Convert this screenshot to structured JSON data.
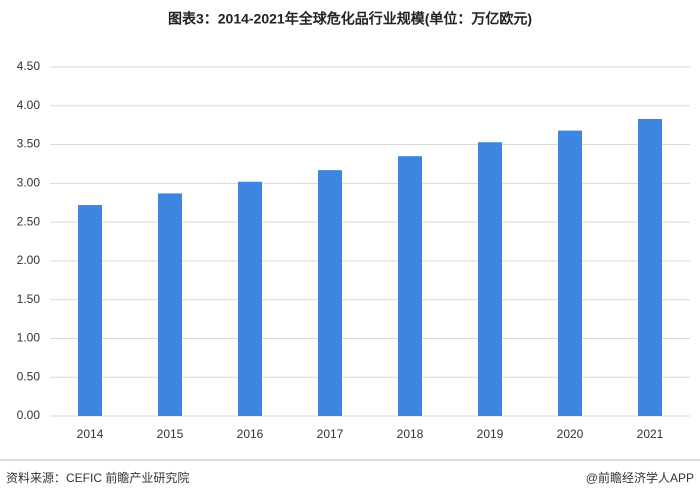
{
  "chart_data": {
    "type": "bar",
    "title": "图表3：2014-2021年全球危化品行业规模(单位：万亿欧元)",
    "categories": [
      "2014",
      "2015",
      "2016",
      "2017",
      "2018",
      "2019",
      "2020",
      "2021"
    ],
    "values": [
      2.72,
      2.87,
      3.02,
      3.17,
      3.35,
      3.53,
      3.68,
      3.83
    ],
    "color": "#3d85e0",
    "ylim": [
      0,
      4.5
    ],
    "yticks": [
      {
        "value": 0,
        "label": "0.00"
      },
      {
        "value": 0.5,
        "label": "0.50"
      },
      {
        "value": 1,
        "label": "1.00"
      },
      {
        "value": 1.5,
        "label": "1.50"
      },
      {
        "value": 2,
        "label": "2.00"
      },
      {
        "value": 2.5,
        "label": "2.50"
      },
      {
        "value": 3,
        "label": "3.00"
      },
      {
        "value": 3.5,
        "label": "3.50"
      },
      {
        "value": 4,
        "label": "4.00"
      },
      {
        "value": 4.5,
        "label": "4.50"
      }
    ],
    "grid": true,
    "source": "资料来源：CEFIC 前瞻产业研究院",
    "footer": "@前瞻经济学人APP"
  }
}
